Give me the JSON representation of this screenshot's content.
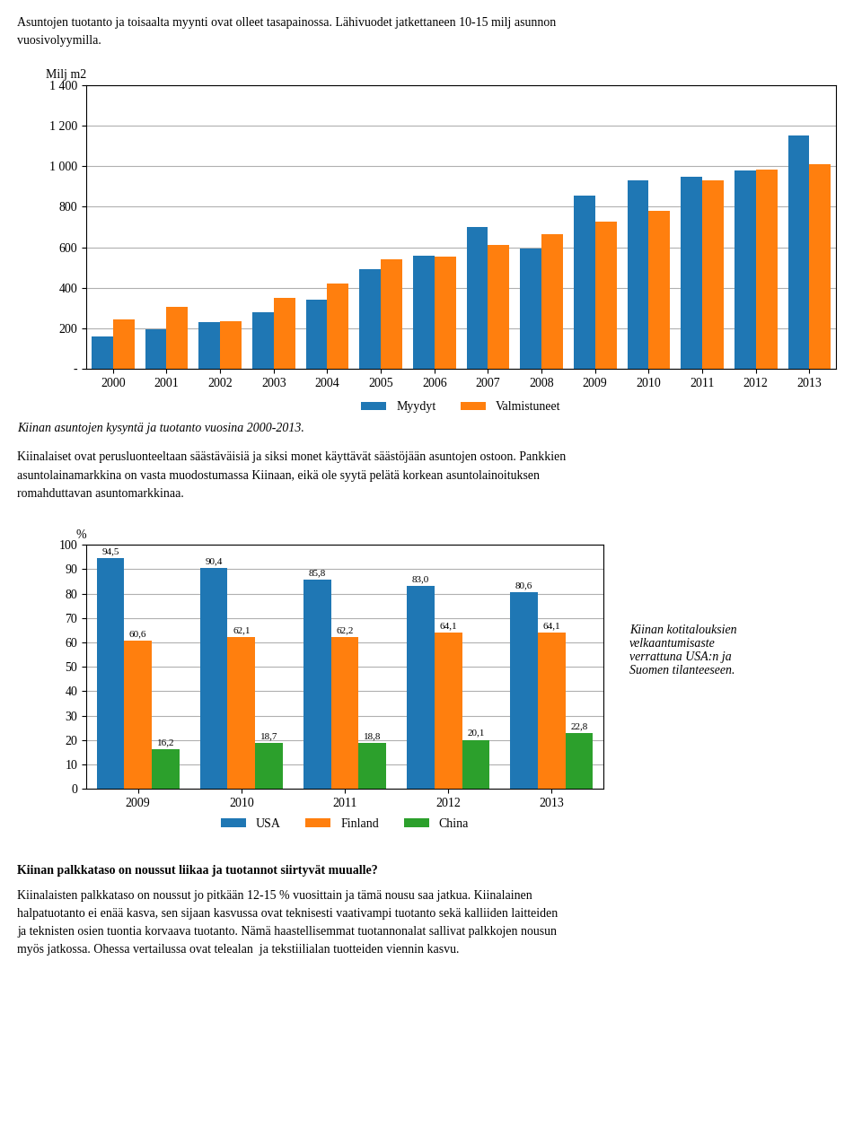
{
  "chart_data": [
    {
      "type": "bar",
      "title": "Kiinan asuntojen kysyntä ja tuotanto vuosina 2000-2013.",
      "ylabel": "Milj m2",
      "categories": [
        "2000",
        "2001",
        "2002",
        "2003",
        "2004",
        "2005",
        "2006",
        "2007",
        "2008",
        "2009",
        "2010",
        "2011",
        "2012",
        "2013"
      ],
      "series": [
        {
          "name": "Myydyt",
          "values": [
            160,
            195,
            230,
            280,
            340,
            490,
            560,
            700,
            595,
            855,
            930,
            950,
            980,
            1150
          ]
        },
        {
          "name": "Valmistuneet",
          "values": [
            245,
            305,
            235,
            350,
            420,
            540,
            555,
            610,
            665,
            725,
            780,
            930,
            985,
            1010
          ]
        }
      ],
      "ylim": [
        0,
        1400
      ],
      "yticks": [
        {
          "value": 0,
          "label": "-"
        },
        200,
        400,
        600,
        800,
        {
          "value": 1000,
          "label": "1 000"
        },
        {
          "value": 1200,
          "label": "1 200"
        },
        {
          "value": 1400,
          "label": "1 400"
        }
      ],
      "grid": true,
      "legend": "upper center",
      "annotations": [
        [
          "Asuntojen tuotanto ja toisaalta myynti ovat olleet tasapainossa. Lähivuodet jatkettaneen 10-15 milj asunnon",
          "vuosivolyymilla."
        ]
      ]
    },
    {
      "type": "bar",
      "title": "Kiinan kotitalouksien\nvelkaantumisaste\nverrattuna USA:n ja\nSuomen tilanteeseen.",
      "ylabel": "%",
      "categories": [
        "2009",
        "2010",
        "2011",
        "2012",
        "2013"
      ],
      "series": [
        {
          "name": "USA",
          "values": [
            94.5,
            90.4,
            85.8,
            83.0,
            80.6
          ],
          "value_labels": [
            "94,5",
            "90,4",
            "85,8",
            "83,0",
            "80,6"
          ]
        },
        {
          "name": "Finland",
          "values": [
            60.6,
            62.1,
            62.2,
            64.1,
            64.1
          ],
          "value_labels": [
            "60,6",
            "62,1",
            "62,2",
            "64,1",
            "64,1"
          ]
        },
        {
          "name": "China",
          "values": [
            16.2,
            18.7,
            18.8,
            20.1,
            22.8
          ],
          "value_labels": [
            "16,2",
            "18,7",
            "18,8",
            "20,1",
            "22,8"
          ]
        }
      ],
      "data_labels": true,
      "ylim": [
        0,
        100
      ],
      "yticks": [
        0,
        10,
        20,
        30,
        40,
        50,
        60,
        70,
        80,
        90,
        100
      ],
      "grid": true,
      "legend": "upper center",
      "annotations": [
        [
          "Kiinalaiset ovat perusluonteeltaan säästäväisiä ja siksi monet käyttävät säästöjään asuntojen ostoon. Pankkien",
          "asuntolainamarkkina on vasta muodostumassa Kiinaan, eikä ole syytä pelätä korkean asuntolainoituksen",
          "romahduttavan asuntomarkkinaa."
        ],
        [
          "Kiinan palkkataso on noussut liikaa ja tuotannot siirtyvät muualle?"
        ],
        [
          "Kiinalaisten palkkataso on noussut jo pitkään 12-15 % vuosittain ja tämä nousu saa jatkua. Kiinalainen",
          "halpatuotanto ei enää kasva, sen sijaan kasvussa ovat teknisesti vaativampi tuotanto sekä kalliiden laitteiden",
          "ja teknisten osien tuontia korvaava tuotanto. Nämä haastellisemmat tuotannonalat sallivat palkkojen nousun",
          "myös jatkossa. Ohessa vertailussa ovat telealan  ja tekstiilialan tuotteiden viennin kasvu."
        ]
      ]
    }
  ]
}
